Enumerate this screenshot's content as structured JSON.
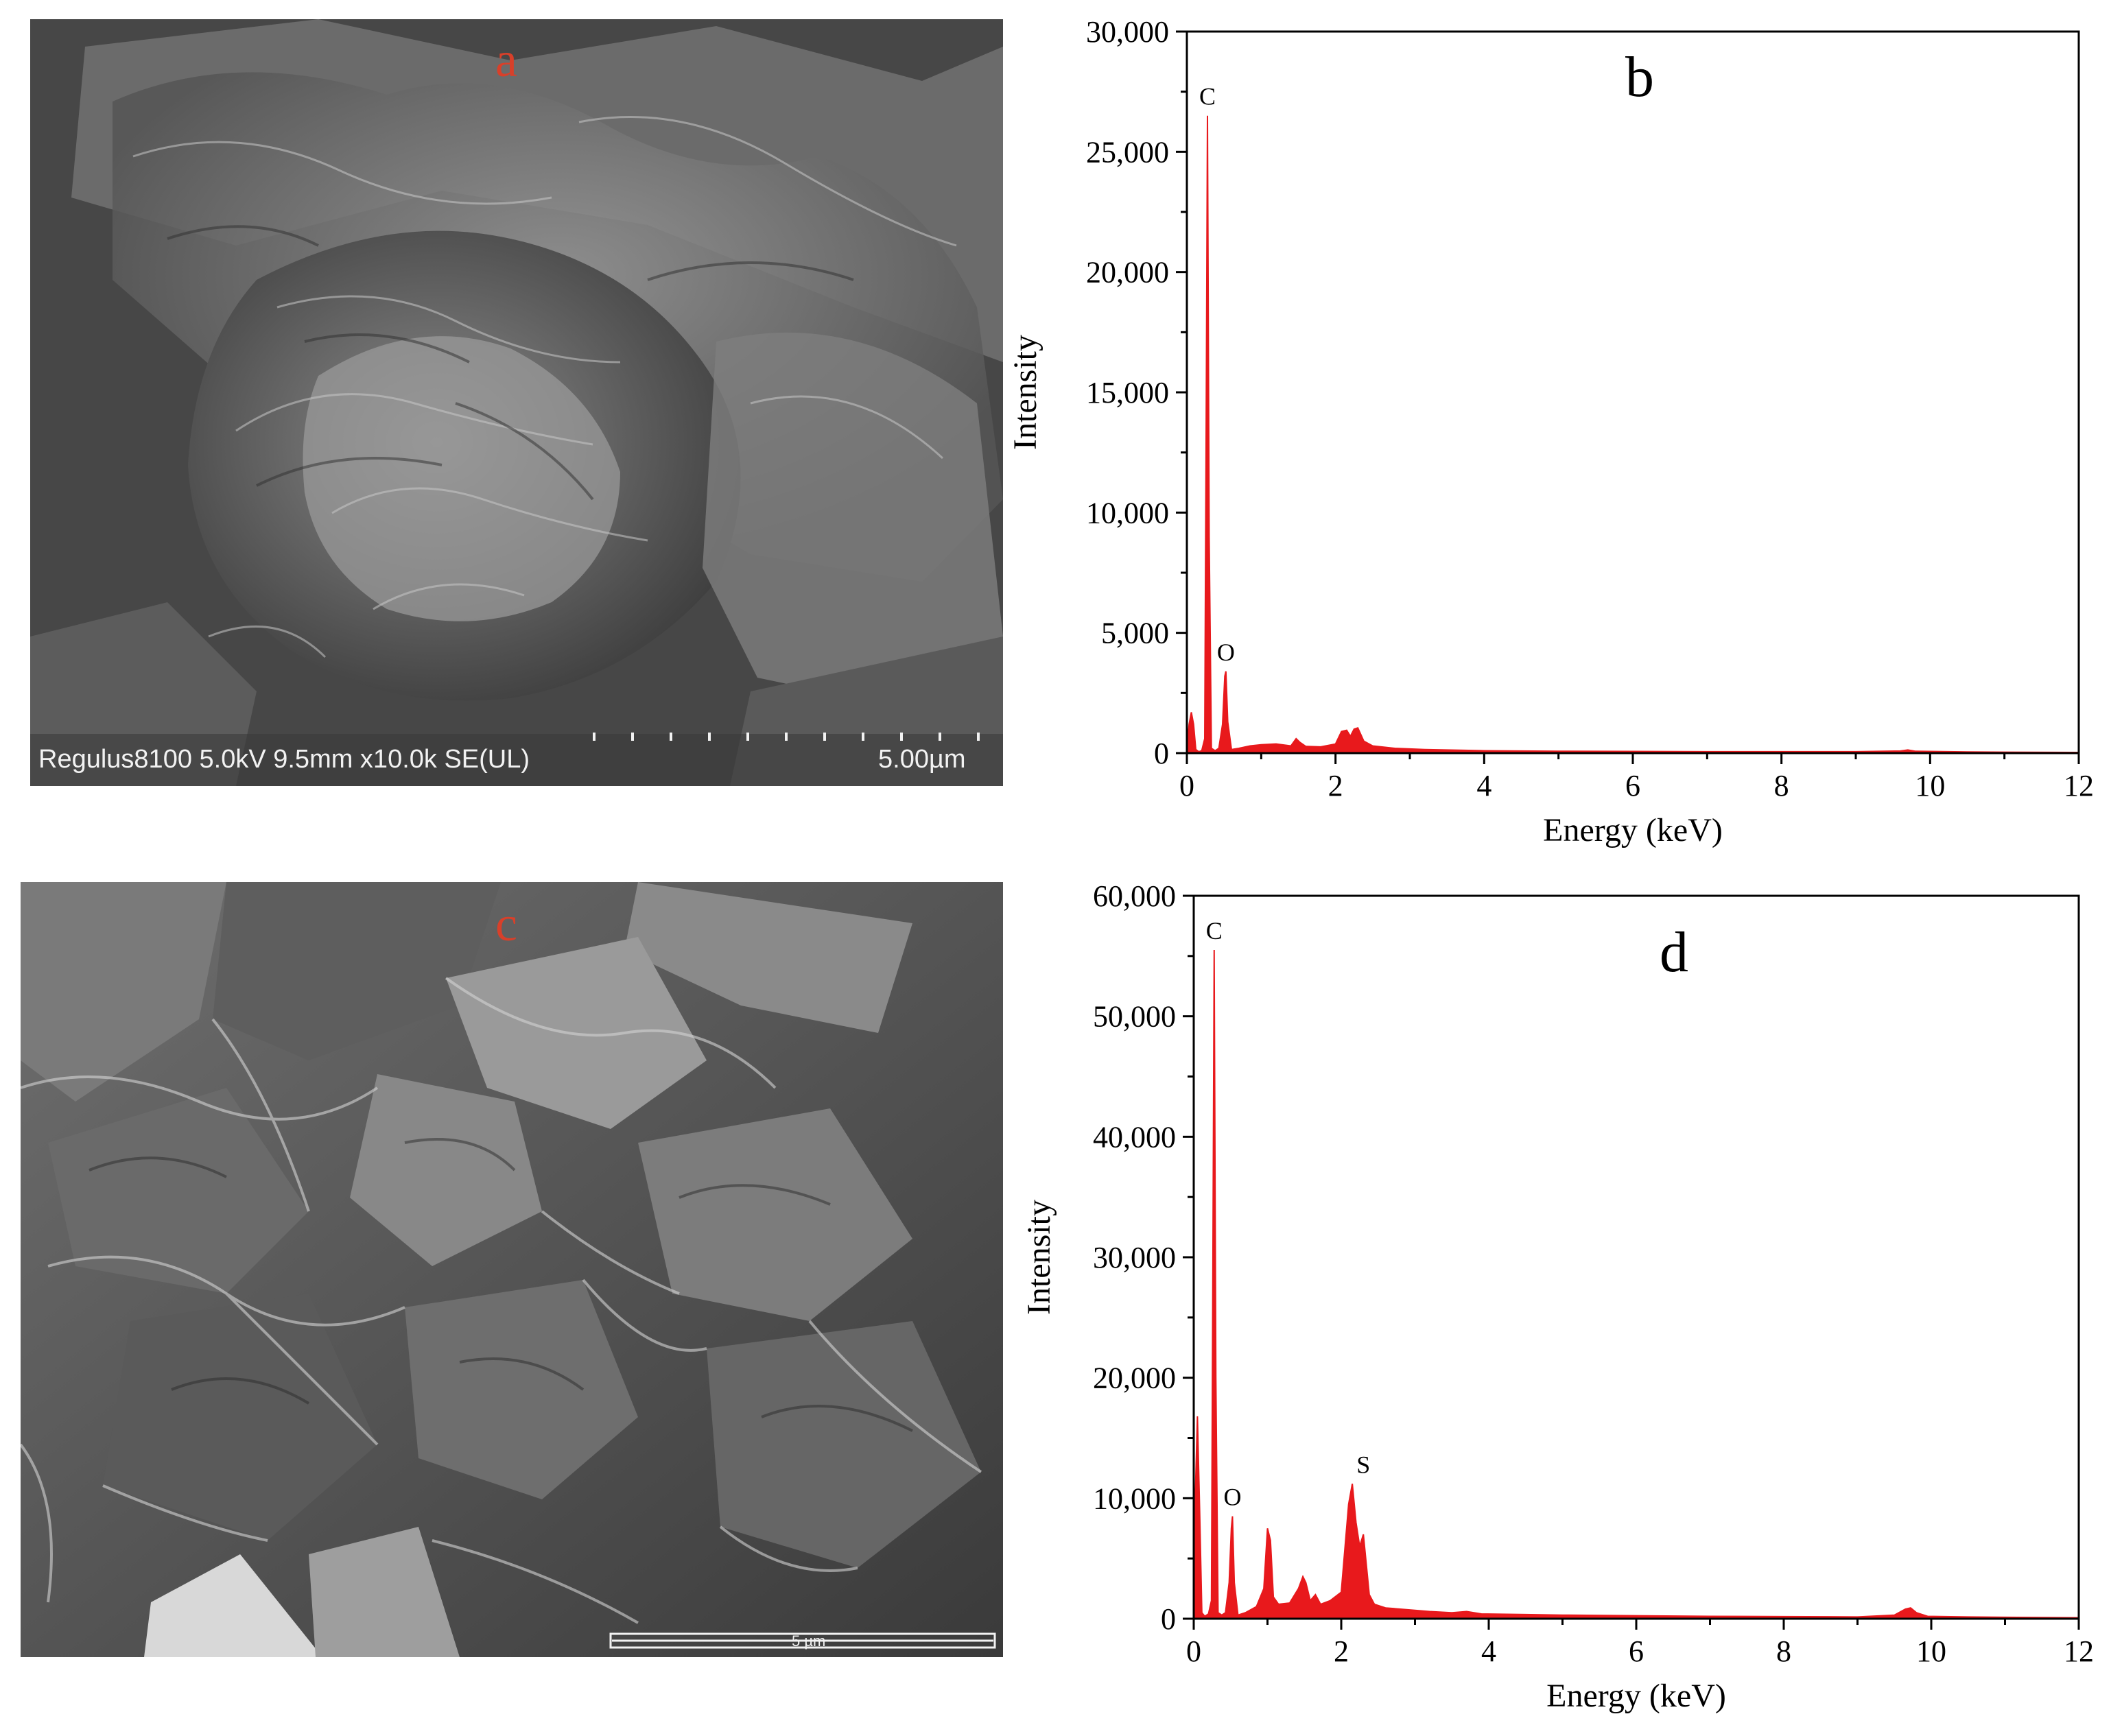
{
  "panels": {
    "a": {
      "letter": "a",
      "info_text": "Regulus8100 5.0kV 9.5mm x10.0k SE(UL)",
      "scale_text": "5.00µm"
    },
    "c": {
      "letter": "c",
      "scale_text": "5 µm"
    }
  },
  "chart_data": [
    {
      "type": "area",
      "panel_letter": "b",
      "xlabel": "Energy (keV)",
      "ylabel": "Intensity",
      "xlim": [
        0,
        12
      ],
      "ylim": [
        0,
        30000
      ],
      "x_ticks": [
        0,
        2,
        4,
        6,
        8,
        10,
        12
      ],
      "y_ticks": [
        0,
        5000,
        10000,
        15000,
        20000,
        25000,
        30000
      ],
      "y_tick_labels": [
        "0",
        "5,000",
        "10,000",
        "15,000",
        "20,000",
        "25,000",
        "30,000"
      ],
      "color": "#e8191c",
      "grid": false,
      "annotations": [
        {
          "text": "C",
          "x": 0.277,
          "y": 26500
        },
        {
          "text": "O",
          "x": 0.525,
          "y": 3400
        }
      ],
      "series": [
        {
          "x": [
            0,
            0.03,
            0.06,
            0.09,
            0.12,
            0.16,
            0.2,
            0.24,
            0.26,
            0.277,
            0.3,
            0.33,
            0.38,
            0.43,
            0.48,
            0.51,
            0.525,
            0.55,
            0.6,
            0.7,
            0.85,
            1.0,
            1.2,
            1.4,
            1.47,
            1.52,
            1.6,
            1.8,
            2.0,
            2.08,
            2.15,
            2.2,
            2.25,
            2.3,
            2.38,
            2.5,
            2.8,
            3.2,
            4.0,
            5.0,
            6.0,
            7.0,
            8.0,
            9.0,
            9.6,
            9.7,
            9.8,
            10.5,
            11.0,
            12.0
          ],
          "y": [
            200,
            1200,
            1700,
            1200,
            150,
            60,
            100,
            600,
            14000,
            26500,
            9000,
            200,
            100,
            200,
            1200,
            3200,
            3400,
            1300,
            150,
            200,
            300,
            350,
            380,
            300,
            600,
            450,
            280,
            260,
            380,
            900,
            950,
            700,
            1000,
            1050,
            500,
            300,
            200,
            150,
            100,
            80,
            70,
            60,
            60,
            60,
            90,
            130,
            80,
            50,
            40,
            30
          ]
        }
      ]
    },
    {
      "type": "area",
      "panel_letter": "d",
      "xlabel": "Energy (keV)",
      "ylabel": "Intensity",
      "xlim": [
        0,
        12
      ],
      "ylim": [
        0,
        60000
      ],
      "x_ticks": [
        0,
        2,
        4,
        6,
        8,
        10,
        12
      ],
      "y_ticks": [
        0,
        10000,
        20000,
        30000,
        40000,
        50000,
        60000
      ],
      "y_tick_labels": [
        "0",
        "10,000",
        "20,000",
        "30,000",
        "40,000",
        "50,000",
        "60,000"
      ],
      "color": "#e8191c",
      "grid": false,
      "annotations": [
        {
          "text": "C",
          "x": 0.277,
          "y": 55500
        },
        {
          "text": "O",
          "x": 0.525,
          "y": 8500
        },
        {
          "text": "S",
          "x": 2.3,
          "y": 11200
        }
      ],
      "series": [
        {
          "x": [
            0,
            0.02,
            0.05,
            0.08,
            0.11,
            0.15,
            0.2,
            0.24,
            0.26,
            0.277,
            0.3,
            0.33,
            0.38,
            0.43,
            0.48,
            0.51,
            0.525,
            0.55,
            0.6,
            0.7,
            0.85,
            0.95,
            1.0,
            1.04,
            1.08,
            1.15,
            1.3,
            1.42,
            1.48,
            1.52,
            1.58,
            1.65,
            1.72,
            1.85,
            2.0,
            2.1,
            2.15,
            2.2,
            2.25,
            2.3,
            2.34,
            2.38,
            2.45,
            2.6,
            2.8,
            3.2,
            3.5,
            3.7,
            3.9,
            4.5,
            5.0,
            6.0,
            7.0,
            8.0,
            9.0,
            9.5,
            9.65,
            9.72,
            9.8,
            9.95,
            10.5,
            11.0,
            11.5,
            12.0
          ],
          "y": [
            500,
            10000,
            16800,
            9000,
            500,
            200,
            400,
            1500,
            30000,
            55500,
            20000,
            500,
            300,
            500,
            3000,
            7500,
            8500,
            3000,
            300,
            500,
            1000,
            2500,
            7500,
            6500,
            1800,
            1200,
            1300,
            2500,
            3500,
            3000,
            1500,
            2000,
            1200,
            1500,
            2200,
            9500,
            11200,
            8000,
            6000,
            7000,
            4500,
            2000,
            1200,
            900,
            800,
            600,
            500,
            600,
            400,
            350,
            300,
            250,
            200,
            180,
            150,
            300,
            800,
            900,
            500,
            200,
            150,
            120,
            100,
            80
          ]
        }
      ]
    }
  ]
}
